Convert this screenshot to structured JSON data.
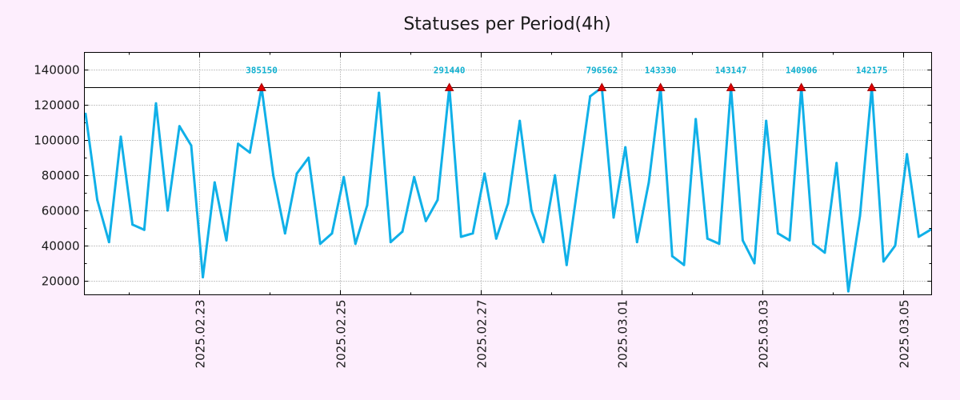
{
  "chart_data": {
    "type": "line",
    "title": "Statuses per Period(4h)",
    "xlabel": "",
    "ylabel": "",
    "ylim": [
      12000,
      150000
    ],
    "yticks": [
      20000,
      40000,
      60000,
      80000,
      100000,
      120000,
      140000
    ],
    "ytick_labels": [
      "20000",
      "40000",
      "60000",
      "80000",
      "100000",
      "120000",
      "140000"
    ],
    "xlim": [
      -0.1,
      72.1
    ],
    "xticks": [
      9.7,
      21.7,
      33.7,
      45.7,
      57.7,
      69.7
    ],
    "xtick_labels": [
      "2025.02.23",
      "2025.02.25",
      "2025.02.27",
      "2025.03.01",
      "2025.03.03",
      "2025.03.05"
    ],
    "grid": true,
    "threshold": 130000,
    "series": [
      {
        "name": "statuses",
        "color": "#10b0e8",
        "values": [
          115000,
          66000,
          42000,
          102000,
          52000,
          49000,
          121000,
          60000,
          108000,
          97000,
          22000,
          76000,
          43000,
          98000,
          93000,
          130000,
          80000,
          47000,
          81000,
          90000,
          41000,
          47000,
          79000,
          41000,
          63000,
          127000,
          42000,
          48000,
          79000,
          54000,
          66000,
          130000,
          45000,
          47000,
          81000,
          44000,
          64000,
          111000,
          60000,
          42000,
          80000,
          29000,
          77000,
          125000,
          130000,
          56000,
          96000,
          42000,
          76000,
          130000,
          34000,
          29000,
          112000,
          44000,
          41000,
          130000,
          43000,
          30000,
          111000,
          47000,
          43000,
          130000,
          41000,
          36000,
          87000,
          14000,
          57000,
          130000,
          31000,
          40000,
          92000,
          45000,
          49000
        ]
      }
    ],
    "markers": [
      {
        "x": 15,
        "y": 130000,
        "label": "385150"
      },
      {
        "x": 31,
        "y": 130000,
        "label": "291440"
      },
      {
        "x": 44,
        "y": 130000,
        "label": "796562"
      },
      {
        "x": 49,
        "y": 130000,
        "label": "143330"
      },
      {
        "x": 55,
        "y": 130000,
        "label": "143147"
      },
      {
        "x": 61,
        "y": 130000,
        "label": "140906"
      },
      {
        "x": 67,
        "y": 130000,
        "label": "142175"
      }
    ],
    "colors": {
      "background": "#fdeefd",
      "plot_background": "#ffffff",
      "line": "#10b0e8",
      "marker": "#e00000",
      "marker_label": "#10b0d0",
      "threshold": "#000000",
      "grid": "#909090"
    }
  }
}
